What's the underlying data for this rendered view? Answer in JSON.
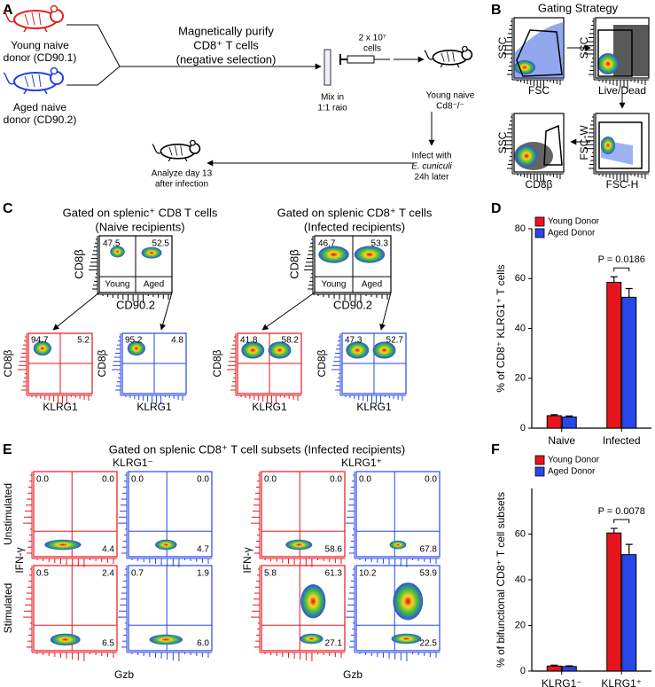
{
  "panel_a": {
    "label": "A",
    "young_donor": [
      "Young naive",
      "donor (CD90.1)"
    ],
    "aged_donor": [
      "Aged naive",
      "donor (CD90.2)"
    ],
    "purify": [
      "Magnetically purify",
      "CD8⁺ T cells",
      "(negative selection)"
    ],
    "cells": [
      "2 x 10⁷",
      "cells"
    ],
    "mix": [
      "Mix in",
      "1:1 raio"
    ],
    "recipient": [
      "Young naive",
      "Cd8⁻/⁻"
    ],
    "infect": [
      "Infect with",
      "E. cuniculi",
      "24h later"
    ],
    "analyze": [
      "Analyze day 13",
      "after infection"
    ]
  },
  "panel_b": {
    "label": "B",
    "title": "Gating Strategy",
    "plots": [
      {
        "x": "FSC",
        "y": "SSC"
      },
      {
        "x": "Live/Dead",
        "y": "SSC"
      },
      {
        "x": "FSC-H",
        "y": "FSC-W"
      },
      {
        "x": "CD8β",
        "y": "SSC"
      }
    ]
  },
  "panel_c": {
    "label": "C",
    "groups": [
      {
        "title": [
          "Gated on splenic⁺ CD8  T cells",
          "(Naive recipients)"
        ],
        "top": {
          "quadrants": [
            "47.5",
            "52.5"
          ],
          "cells": [
            "Young",
            "Aged"
          ],
          "x": "CD90.2",
          "y": "CD8β"
        },
        "subsets": [
          {
            "quadrants": [
              "94.7",
              "5.2"
            ],
            "x": "KLRG1",
            "y": "CD8β"
          },
          {
            "quadrants": [
              "95.2",
              "4.8"
            ],
            "x": "KLRG1",
            "y": "CD8β"
          }
        ]
      },
      {
        "title": [
          "Gated on splenic CD8⁺ T cells",
          "(Infected recipients)"
        ],
        "top": {
          "quadrants": [
            "46.7",
            "53.3"
          ],
          "cells": [
            "Young",
            "Aged"
          ],
          "x": "CD90.2",
          "y": "CD8β"
        },
        "subsets": [
          {
            "quadrants": [
              "41.8",
              "58.2"
            ],
            "x": "KLRG1",
            "y": "CD8β"
          },
          {
            "quadrants": [
              "47.3",
              "52.7"
            ],
            "x": "KLRG1",
            "y": "CD8β"
          }
        ]
      }
    ]
  },
  "panel_e": {
    "label": "E",
    "title": "Gated on splenic CD8⁺ T cell subsets (Infected recipients)",
    "subsets": [
      "KLRG1⁻",
      "KLRG1⁺"
    ],
    "rows": [
      "Unstimulated",
      "Stimulated"
    ],
    "y": "IFN-γ",
    "x": "Gzb",
    "plots": [
      [
        [
          "0.0",
          "0.0",
          "4.4"
        ],
        [
          "0.0",
          "0.0",
          "4.7"
        ],
        [
          "0.0",
          "0.0",
          "58.6"
        ],
        [
          "0.0",
          "0.0",
          "67.8"
        ]
      ],
      [
        [
          "0.5",
          "2.4",
          "6.5"
        ],
        [
          "0.7",
          "1.9",
          "6.0"
        ],
        [
          "5.8",
          "61.3",
          "27.1"
        ],
        [
          "10.2",
          "53.9",
          "22.5"
        ]
      ]
    ]
  },
  "chart_data": [
    {
      "type": "bar",
      "panel_label": "D",
      "y_label": "% of CD8⁺ KLRG1⁺ T cells",
      "categories": [
        "Naive",
        "Infected"
      ],
      "series": [
        {
          "name": "Young Donor",
          "color": "#e8141c",
          "values": [
            5,
            58.5
          ],
          "errors": [
            0.4,
            2.2
          ]
        },
        {
          "name": "Aged Donor",
          "color": "#2847e8",
          "values": [
            4.5,
            52.5
          ],
          "errors": [
            0.4,
            3.5
          ]
        }
      ],
      "annotation": "P = 0.0186",
      "ylim": [
        0,
        80
      ],
      "yticks": [
        0,
        20,
        40,
        60,
        80
      ]
    },
    {
      "type": "bar",
      "panel_label": "F",
      "y_label": "% of bifunctional CD8⁺ T cell subsets",
      "categories": [
        "KLRG1⁻",
        "KLRG1⁺"
      ],
      "series": [
        {
          "name": "Young Donor",
          "color": "#e8141c",
          "values": [
            2.2,
            60.5
          ],
          "errors": [
            0.4,
            2
          ]
        },
        {
          "name": "Aged Donor",
          "color": "#2847e8",
          "values": [
            2,
            51
          ],
          "errors": [
            0.3,
            4.5
          ]
        }
      ],
      "annotation": "P = 0.0078",
      "ylim": [
        0,
        80
      ],
      "yticks": [
        0,
        20,
        40,
        60
      ]
    }
  ]
}
